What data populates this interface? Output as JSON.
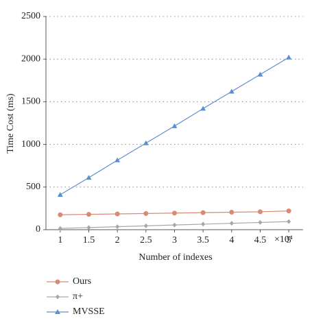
{
  "chart_data": {
    "type": "line",
    "x_label": "Number of indexes",
    "x_multiplier": "×10⁴",
    "y_label": "Time Cost (ms)",
    "x": [
      1,
      1.5,
      2,
      2.5,
      3,
      3.5,
      4,
      4.5,
      5
    ],
    "xlim": [
      0.75,
      5.25
    ],
    "xticks": [
      1,
      1.5,
      2,
      2.5,
      3,
      3.5,
      4,
      4.5,
      5
    ],
    "ylim": [
      0,
      2500
    ],
    "yticks": [
      0,
      500,
      1000,
      1500,
      2000,
      2500
    ],
    "grid": true,
    "legend": "bottom",
    "series": [
      {
        "name": "Ours",
        "color": "#d98a74",
        "marker": "circle",
        "values": [
          175,
          180,
          185,
          190,
          195,
          200,
          205,
          210,
          220
        ]
      },
      {
        "name": "π+",
        "color": "#a6a6a6",
        "marker": "diamond",
        "values": [
          15,
          25,
          35,
          45,
          55,
          65,
          75,
          85,
          95
        ]
      },
      {
        "name": "MVSSE",
        "color": "#5b8fd0",
        "marker": "triangle",
        "values": [
          410,
          610,
          815,
          1015,
          1215,
          1420,
          1620,
          1820,
          2020
        ]
      }
    ]
  }
}
